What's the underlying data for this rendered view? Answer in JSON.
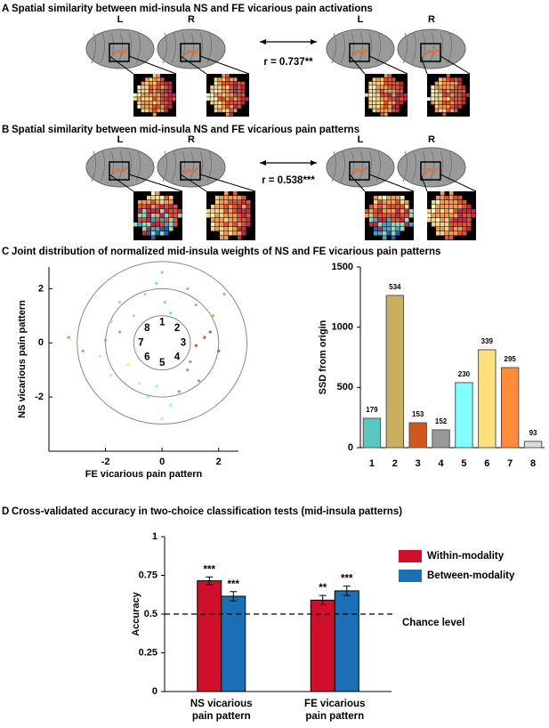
{
  "panels": [
    {
      "label": "A",
      "title": "Spatial similarity between mid-insula NS and FE vicarious pain activations",
      "hemispheres": [
        "L",
        "R",
        "L",
        "R"
      ],
      "r_label": "r = 0.737**"
    },
    {
      "label": "B",
      "title": "Spatial similarity between mid-insula NS and FE vicarious pain patterns",
      "hemispheres": [
        "L",
        "R",
        "L",
        "R"
      ],
      "r_label": "r = 0.538***"
    },
    {
      "label": "C",
      "title": "Joint distribution of normalized mid-insula weights of NS and FE vicarious pain patterns"
    },
    {
      "label": "D",
      "title": "Cross-validated accuracy in two-choice classification tests (mid-insula patterns)"
    }
  ],
  "chart_data": [
    {
      "type": "scatter",
      "x_label": "FE vicarious pain pattern",
      "y_label": "NS vicarious pain pattern",
      "xlim": [
        -4,
        2.7
      ],
      "ylim": [
        -4,
        2.8
      ],
      "xticks": [
        -2,
        0,
        2
      ],
      "yticks": [
        -2,
        0,
        2
      ],
      "circles": [
        1,
        2,
        3
      ],
      "sector_labels": [
        "1",
        "2",
        "3",
        "4",
        "5",
        "6",
        "7",
        "8"
      ],
      "series": [
        {
          "color": "#7fd0e8",
          "x": [
            0.1,
            -0.2,
            0.3,
            0.0
          ],
          "y": [
            1.5,
            2.2,
            1.1,
            2.6
          ]
        },
        {
          "color": "#c8b060",
          "x": [
            1.2,
            1.8,
            0.9,
            2.2
          ],
          "y": [
            1.4,
            1.0,
            2.0,
            1.8
          ]
        },
        {
          "color": "#d0581c",
          "x": [
            1.5,
            2.0,
            1.2,
            1.7
          ],
          "y": [
            0.2,
            -0.3,
            -0.1,
            0.4
          ]
        },
        {
          "color": "#999999",
          "x": [
            0.9,
            1.3,
            0.6,
            1.0
          ],
          "y": [
            -1.0,
            -1.4,
            -1.8,
            -0.7
          ]
        },
        {
          "color": "#80ffff",
          "x": [
            -0.2,
            0.3,
            0.0,
            -0.5
          ],
          "y": [
            -1.6,
            -2.3,
            -2.8,
            -2.0
          ]
        },
        {
          "color": "#ffe080",
          "x": [
            -1.2,
            -1.8,
            -0.8,
            -2.2
          ],
          "y": [
            -0.8,
            -1.2,
            -1.5,
            -0.5
          ]
        },
        {
          "color": "#ff8c3c",
          "x": [
            -2.0,
            -2.8,
            -3.3,
            -1.5
          ],
          "y": [
            0.1,
            -0.3,
            0.2,
            0.4
          ]
        },
        {
          "color": "#b8c8d8",
          "x": [
            -1.0,
            -1.5,
            -0.6,
            -1.8
          ],
          "y": [
            1.0,
            1.5,
            1.8,
            0.8
          ]
        }
      ]
    },
    {
      "type": "bar",
      "y_label": "SSD from origin",
      "categories": [
        "1",
        "2",
        "3",
        "4",
        "5",
        "6",
        "7",
        "8"
      ],
      "values": [
        244,
        1264,
        207,
        148,
        540,
        813,
        665,
        52
      ],
      "counts": [
        179,
        534,
        153,
        152,
        230,
        339,
        295,
        93
      ],
      "colors": [
        "#5bc8c0",
        "#c8b060",
        "#d0581c",
        "#999999",
        "#80ffff",
        "#ffe080",
        "#ff8c3c",
        "#dddddd"
      ],
      "ylim": [
        0,
        1500
      ],
      "yticks": [
        0,
        500,
        1000,
        1500
      ]
    },
    {
      "type": "bar",
      "y_label": "Accuracy",
      "categories": [
        [
          "NS vicarious",
          "pain pattern"
        ],
        [
          "FE vicarious",
          "pain pattern"
        ]
      ],
      "series": [
        {
          "name": "Within-modality",
          "color": "#d0102a",
          "values": [
            0.715,
            0.59
          ],
          "errors": [
            0.025,
            0.03
          ],
          "significance": [
            "***",
            "**"
          ]
        },
        {
          "name": "Between-modality",
          "color": "#1a6fb5",
          "values": [
            0.615,
            0.65
          ],
          "errors": [
            0.03,
            0.03
          ],
          "significance": [
            "***",
            "***"
          ]
        }
      ],
      "chance": 0.5,
      "chance_label": "Chance level",
      "ylim": [
        0,
        1
      ],
      "yticks": [
        0,
        0.25,
        0.5,
        0.75,
        1
      ]
    }
  ]
}
